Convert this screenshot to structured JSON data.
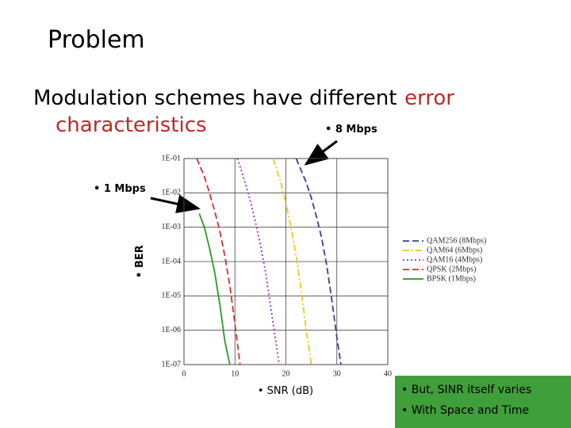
{
  "slide": {
    "title": "Problem",
    "heading_main": "Modulation schemes have different",
    "heading_highlight_1": "error",
    "heading_highlight_2": "characteristics",
    "callouts": [
      "• 8 Mbps",
      "• 1 Mbps"
    ],
    "note_lines": [
      "• But, SINR itself varies",
      "• With Space and Time"
    ]
  },
  "chart_data": {
    "type": "line",
    "x_label": "• SNR (dB)",
    "y_label": "• BER",
    "y_scale": "log",
    "grid": true,
    "xlim": [
      0,
      40
    ],
    "xticks": [
      0,
      10,
      20,
      30,
      40
    ],
    "ylim": [
      1e-07,
      0.1
    ],
    "yticks": [
      {
        "value": 0.1,
        "label": "1E-01"
      },
      {
        "value": 0.01,
        "label": "1E-02"
      },
      {
        "value": 0.001,
        "label": "1E-03"
      },
      {
        "value": 0.0001,
        "label": "1E-04"
      },
      {
        "value": 1e-05,
        "label": "1E-05"
      },
      {
        "value": 1e-06,
        "label": "1E-06"
      },
      {
        "value": 1e-07,
        "label": "1E-07"
      }
    ],
    "series": [
      {
        "name": "QAM256 (8Mbps)",
        "color": "#3b3f9c",
        "line_style": "dashed",
        "x": [
          22,
          24,
          25,
          26,
          27,
          28,
          29,
          30,
          30.8
        ],
        "values": [
          0.1,
          0.02,
          0.007,
          0.002,
          0.0005,
          8e-05,
          8e-06,
          6e-07,
          1e-07
        ]
      },
      {
        "name": "QAM64 (6Mbps)",
        "color": "#e8c81a",
        "line_style": "dashdot",
        "x": [
          17.5,
          19,
          20,
          21,
          22,
          23,
          24,
          25
        ],
        "values": [
          0.1,
          0.02,
          0.005,
          0.001,
          0.00015,
          1.5e-05,
          1e-06,
          1e-07
        ]
      },
      {
        "name": "QAM16 (4Mbps)",
        "color": "#a02cc8",
        "line_style": "dotted",
        "x": [
          10.5,
          12,
          13,
          14,
          15,
          16,
          17,
          18,
          18.7
        ],
        "values": [
          0.1,
          0.02,
          0.006,
          0.0015,
          0.0003,
          5e-05,
          5e-06,
          5e-07,
          1e-07
        ]
      },
      {
        "name": "QPSK (2Mbps)",
        "color": "#e02a2a",
        "line_style": "dashed",
        "x": [
          2.5,
          4,
          5,
          6,
          7,
          8,
          9,
          10,
          11
        ],
        "values": [
          0.1,
          0.03,
          0.01,
          0.003,
          0.0008,
          0.00015,
          2e-05,
          1.5e-06,
          1e-07
        ]
      },
      {
        "name": "BPSK (1Mbps)",
        "color": "#2a9a2a",
        "line_style": "solid",
        "x": [
          3,
          4,
          5,
          6,
          7,
          8,
          9
        ],
        "values": [
          0.0025,
          0.001,
          0.00025,
          5e-05,
          6e-06,
          5e-07,
          1e-07
        ]
      }
    ]
  }
}
